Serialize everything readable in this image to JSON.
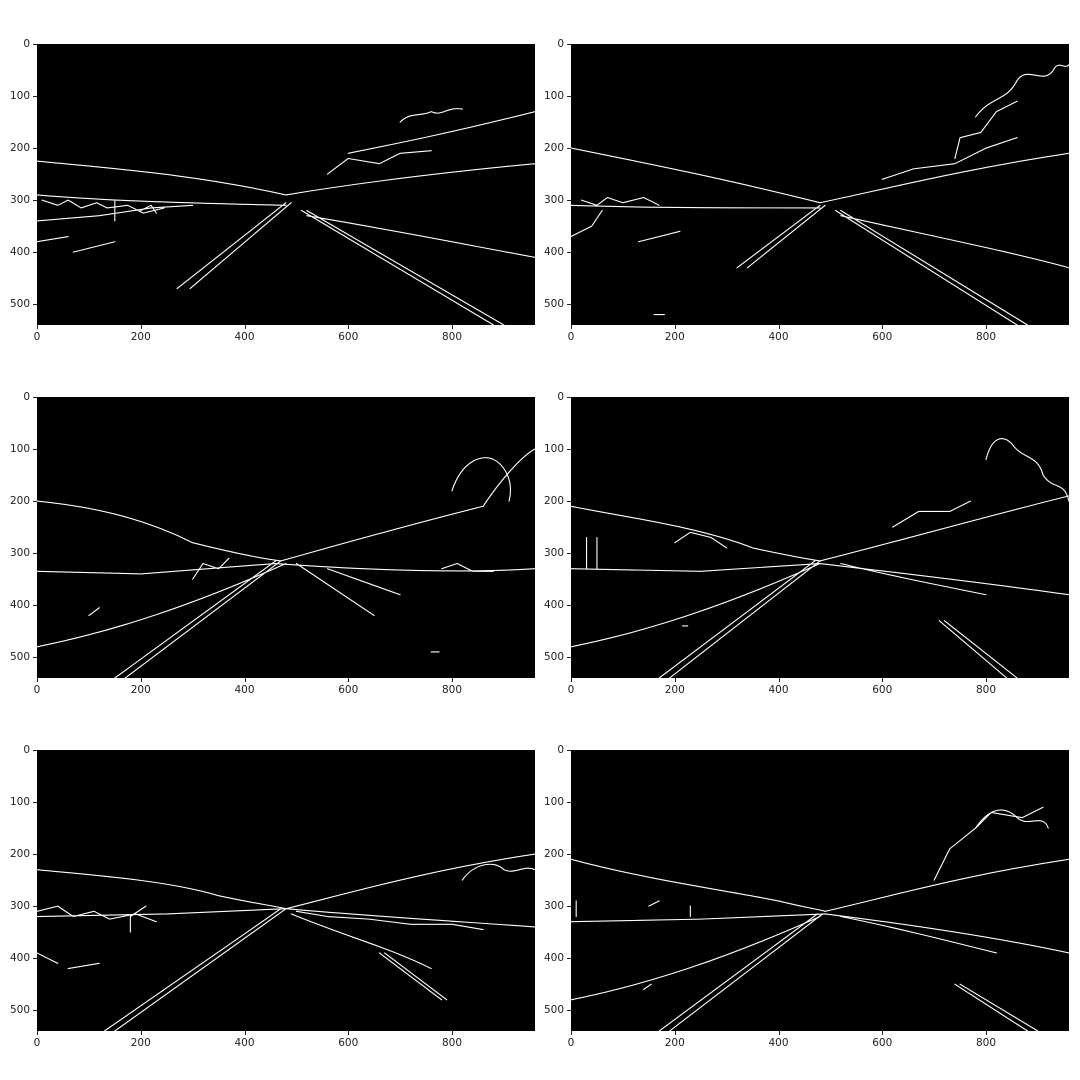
{
  "figure": {
    "panels": [
      {
        "id": "edges-1"
      },
      {
        "id": "edges-2"
      },
      {
        "id": "edges-3"
      },
      {
        "id": "edges-4"
      },
      {
        "id": "edges-5"
      },
      {
        "id": "edges-6"
      }
    ],
    "x_ticks": [
      "0",
      "200",
      "400",
      "600",
      "800"
    ],
    "y_ticks": [
      "0",
      "100",
      "200",
      "300",
      "400",
      "500"
    ],
    "colors": {
      "image_background": "#000000",
      "edges": "#ffffff",
      "page": "#ffffff"
    }
  }
}
